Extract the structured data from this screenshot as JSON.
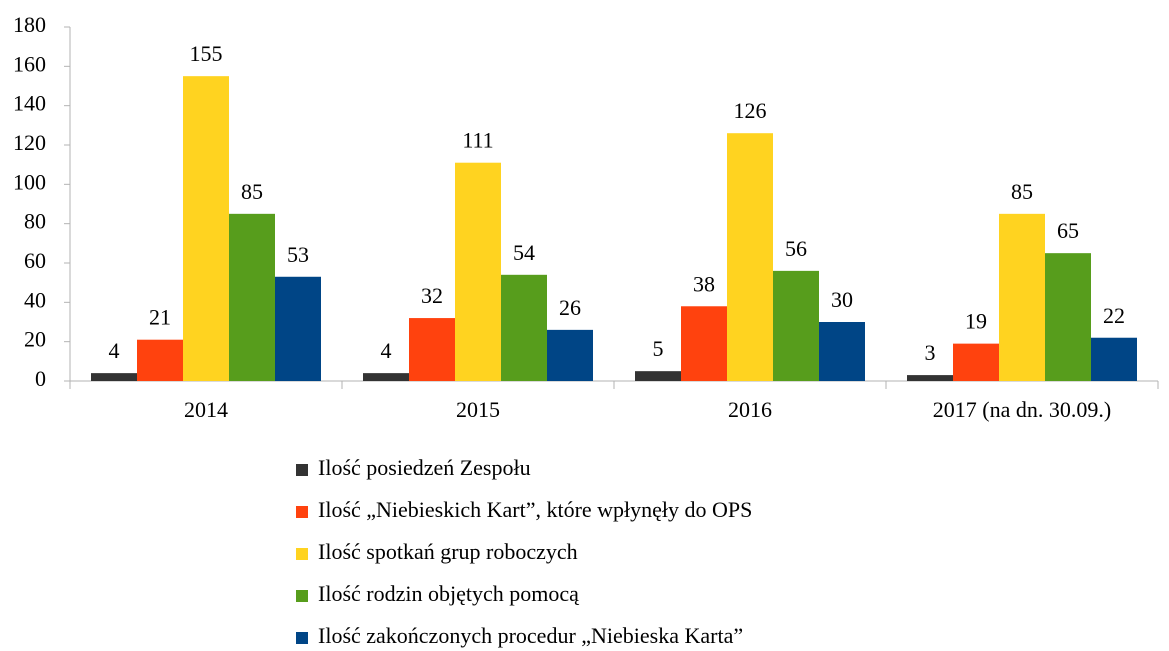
{
  "chart_data": {
    "type": "bar",
    "categories": [
      "2014",
      "2015",
      "2016",
      "2017 (na dn. 30.09.)"
    ],
    "series": [
      {
        "name": "Ilość posiedzeń Zespołu",
        "color": "#333333",
        "values": [
          4,
          4,
          5,
          3
        ]
      },
      {
        "name": "Ilość „Niebieskich Kart”, które wpłynęły do OPS",
        "color": "#ff420e",
        "values": [
          21,
          32,
          38,
          19
        ]
      },
      {
        "name": "Ilość spotkań grup roboczych",
        "color": "#ffd320",
        "values": [
          155,
          111,
          126,
          85
        ]
      },
      {
        "name": "Ilość rodzin objętych pomocą",
        "color": "#579d1c",
        "values": [
          85,
          54,
          56,
          65
        ]
      },
      {
        "name": "Ilość zakończonych procedur „Niebieska Karta”",
        "color": "#004586",
        "values": [
          53,
          26,
          30,
          22
        ]
      }
    ],
    "ylim": [
      0,
      180
    ],
    "yticks": [
      0,
      20,
      40,
      60,
      80,
      100,
      120,
      140,
      160,
      180
    ],
    "legend": "bottom"
  }
}
